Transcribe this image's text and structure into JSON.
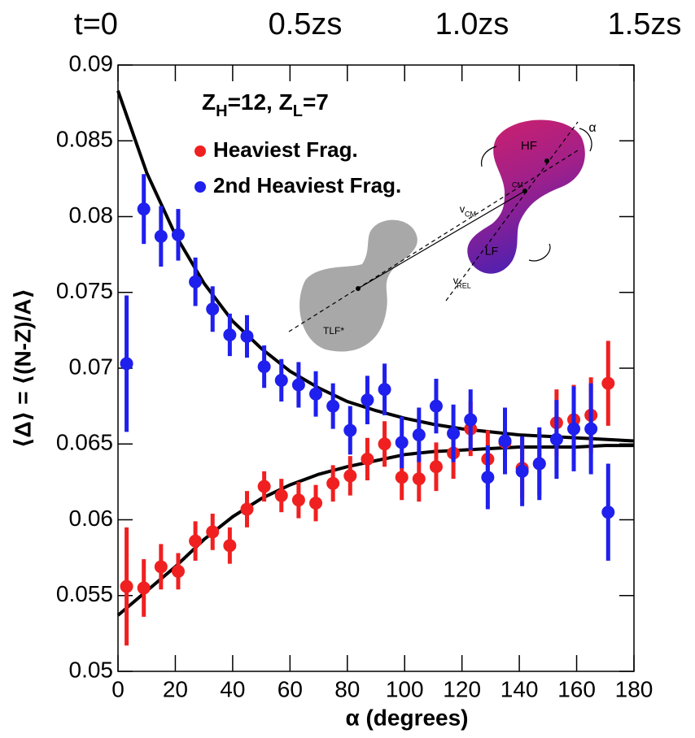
{
  "chart_data": {
    "type": "errorbar",
    "top_labels": [
      "t=0",
      "0.5zs",
      "1.0zs",
      "1.5zs"
    ],
    "annotation": [
      {
        "text": "Z"
      },
      {
        "text": "H",
        "sub": true
      },
      {
        "text": "=12, Z"
      },
      {
        "text": "L",
        "sub": true
      },
      {
        "text": "=7"
      }
    ],
    "xlabel": "α (degrees)",
    "ylabel": "⟨Δ⟩ = ⟨(N-Z)/A⟩",
    "x": [
      3,
      9,
      15,
      21,
      27,
      33,
      39,
      45,
      51,
      57,
      63,
      69,
      75,
      81,
      87,
      93,
      99,
      105,
      111,
      117,
      123,
      129,
      135,
      141,
      147,
      153,
      159,
      165,
      171
    ],
    "series": [
      {
        "name": "Heaviest Frag.",
        "color": "#f02020",
        "values": [
          0.0556,
          0.0555,
          0.0569,
          0.0566,
          0.0586,
          0.0592,
          0.0583,
          0.0607,
          0.0622,
          0.0616,
          0.0613,
          0.0611,
          0.0624,
          0.0629,
          0.064,
          0.065,
          0.0628,
          0.0627,
          0.0635,
          0.0644,
          0.066,
          0.064,
          0.0651,
          0.0634,
          0.0637,
          0.0664,
          0.0666,
          0.0669,
          0.069
        ],
        "errors": [
          0.0039,
          0.0019,
          0.0015,
          0.0012,
          0.0013,
          0.0012,
          0.0012,
          0.0012,
          0.001,
          0.0011,
          0.0012,
          0.0012,
          0.0012,
          0.0013,
          0.0014,
          0.0015,
          0.0015,
          0.0015,
          0.0016,
          0.0017,
          0.0018,
          0.0019,
          0.0019,
          0.002,
          0.0021,
          0.0022,
          0.0023,
          0.0025,
          0.0028
        ]
      },
      {
        "name": "2nd Heaviest Frag.",
        "color": "#1f1fee",
        "values": [
          0.0703,
          0.0805,
          0.0787,
          0.0788,
          0.0757,
          0.0739,
          0.0722,
          0.0721,
          0.0701,
          0.0692,
          0.0689,
          0.0683,
          0.0675,
          0.0659,
          0.0679,
          0.0686,
          0.0651,
          0.0656,
          0.0675,
          0.0657,
          0.0666,
          0.0628,
          0.0652,
          0.0632,
          0.0637,
          0.0653,
          0.066,
          0.066,
          0.0605
        ],
        "errors": [
          0.0045,
          0.0023,
          0.002,
          0.0017,
          0.0016,
          0.0015,
          0.0014,
          0.0014,
          0.0014,
          0.0014,
          0.0015,
          0.0015,
          0.0015,
          0.0016,
          0.0016,
          0.0017,
          0.0017,
          0.0018,
          0.0018,
          0.0019,
          0.002,
          0.0021,
          0.0022,
          0.0023,
          0.0024,
          0.0026,
          0.0028,
          0.003,
          0.0032
        ]
      }
    ],
    "fits": [
      {
        "color": "#000000",
        "x": [
          0,
          10,
          20,
          30,
          40,
          50,
          60,
          70,
          80,
          90,
          100,
          110,
          120,
          130,
          140,
          150,
          160,
          170,
          180
        ],
        "values": [
          0.0883,
          0.0829,
          0.0788,
          0.0756,
          0.0731,
          0.0713,
          0.0698,
          0.0687,
          0.0678,
          0.0672,
          0.0667,
          0.0663,
          0.066,
          0.0658,
          0.0656,
          0.0655,
          0.0654,
          0.0653,
          0.0652
        ]
      },
      {
        "color": "#000000",
        "x": [
          0,
          10,
          20,
          30,
          40,
          50,
          60,
          70,
          80,
          90,
          100,
          110,
          120,
          130,
          140,
          150,
          160,
          170,
          180
        ],
        "values": [
          0.0537,
          0.0553,
          0.0569,
          0.0587,
          0.0602,
          0.0614,
          0.0623,
          0.063,
          0.0635,
          0.0639,
          0.0643,
          0.0645,
          0.0646,
          0.0647,
          0.0648,
          0.0648,
          0.0648,
          0.0649,
          0.0649
        ]
      }
    ],
    "inset_labels": [
      "HF",
      "CM",
      "LF",
      "TLF*",
      "α",
      "v",
      "CM",
      "v",
      "REL"
    ],
    "xlim": [
      0,
      180
    ],
    "xticks": [
      0,
      20,
      40,
      60,
      80,
      100,
      120,
      140,
      160,
      180
    ],
    "ylim": [
      0.05,
      0.09
    ],
    "yticks": [
      0.05,
      0.055,
      0.06,
      0.065,
      0.07,
      0.075,
      0.08,
      0.085,
      0.09
    ]
  }
}
